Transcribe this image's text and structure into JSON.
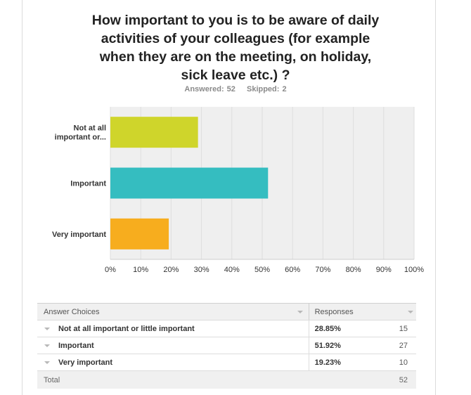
{
  "question": {
    "title_lines": [
      "How important to you is to be aware of daily",
      "activities of your colleagues (for example",
      "when they are on the meeting, on holiday,",
      "sick leave etc.) ?"
    ],
    "answered": "Answered: 52",
    "skipped": "Skipped: 2"
  },
  "chart_data": {
    "type": "bar",
    "orientation": "horizontal",
    "categories": [
      "Not at all important or...",
      "Important",
      "Very important"
    ],
    "category_label_lines": [
      [
        "Not at all",
        "important or..."
      ],
      [
        "Important"
      ],
      [
        "Very important"
      ]
    ],
    "values": [
      28.85,
      51.92,
      19.23
    ],
    "colors": [
      "#cfd52b",
      "#35bdc0",
      "#f7ad1e"
    ],
    "xlim": [
      0,
      100
    ],
    "x_ticks": [
      "0%",
      "10%",
      "20%",
      "30%",
      "40%",
      "50%",
      "60%",
      "70%",
      "80%",
      "90%",
      "100%"
    ],
    "grid": true
  },
  "table": {
    "headers": {
      "choice": "Answer Choices",
      "responses": "Responses"
    },
    "rows": [
      {
        "label": "Not at all important or little important",
        "percent": "28.85%",
        "count": "15"
      },
      {
        "label": "Important",
        "percent": "51.92%",
        "count": "27"
      },
      {
        "label": "Very important",
        "percent": "19.23%",
        "count": "10"
      }
    ],
    "total": {
      "label": "Total",
      "count": "52"
    }
  }
}
